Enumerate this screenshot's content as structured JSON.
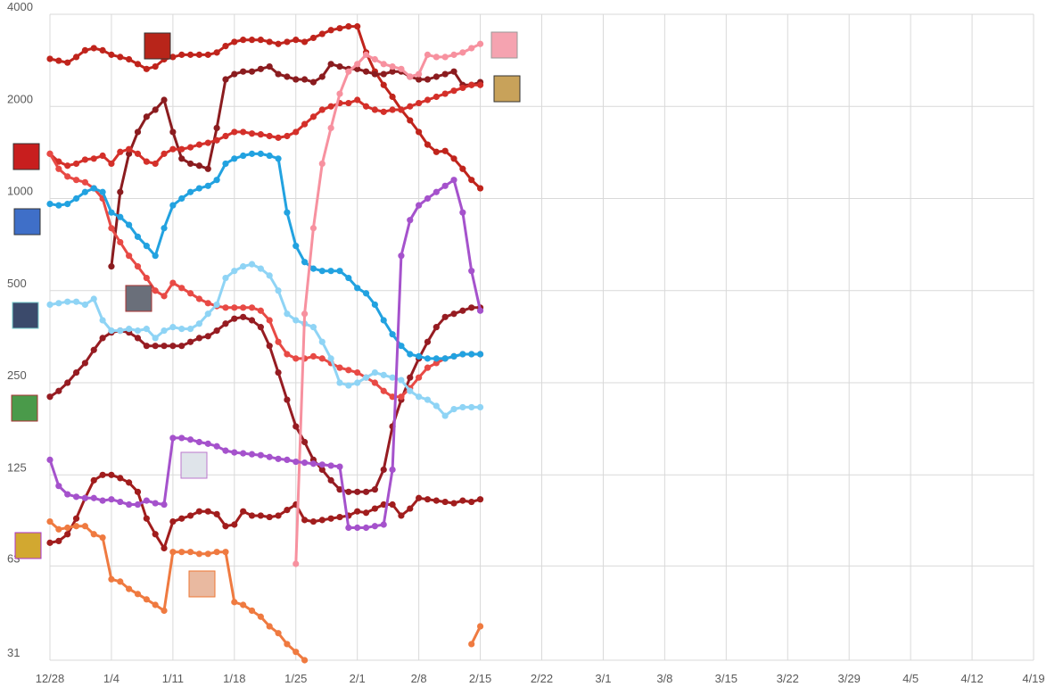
{
  "chart_data": {
    "type": "line",
    "yscale": "log",
    "grid": true,
    "x": [
      "12/28",
      "12/29",
      "12/30",
      "12/31",
      "1/1",
      "1/2",
      "1/3",
      "1/4",
      "1/5",
      "1/6",
      "1/7",
      "1/8",
      "1/9",
      "1/10",
      "1/11",
      "1/12",
      "1/13",
      "1/14",
      "1/15",
      "1/16",
      "1/17",
      "1/18",
      "1/19",
      "1/20",
      "1/21",
      "1/22",
      "1/23",
      "1/24",
      "1/25",
      "1/26",
      "1/27",
      "1/28",
      "1/29",
      "1/30",
      "1/31",
      "2/1",
      "2/2",
      "2/3",
      "2/4",
      "2/5",
      "2/6",
      "2/7",
      "2/8",
      "2/9",
      "2/10",
      "2/11",
      "2/12",
      "2/13",
      "2/14",
      "2/15"
    ],
    "xlim": [
      "12/28",
      "4/19"
    ],
    "xticks": [
      "12/28",
      "1/4",
      "1/11",
      "1/18",
      "1/25",
      "2/1",
      "2/8",
      "2/15",
      "2/22",
      "3/1",
      "3/8",
      "3/15",
      "3/22",
      "3/29",
      "4/5",
      "4/12",
      "4/19"
    ],
    "ylim": [
      31,
      4000
    ],
    "yticks": [
      31,
      63,
      125,
      250,
      500,
      1000,
      2000,
      4000
    ],
    "series": [
      {
        "color": "#c0241c",
        "values": [
          2860,
          2820,
          2780,
          2900,
          3050,
          3100,
          3050,
          2950,
          2900,
          2850,
          2750,
          2650,
          2700,
          2850,
          2900,
          2950,
          2950,
          2950,
          2950,
          3000,
          3150,
          3250,
          3300,
          3300,
          3300,
          3250,
          3200,
          3250,
          3300,
          3250,
          3350,
          3450,
          3550,
          3600,
          3650,
          3650,
          3000,
          2600,
          2350,
          2150,
          1950,
          1800,
          1650,
          1500,
          1420,
          1430,
          1350,
          1250,
          1150,
          1080
        ]
      },
      {
        "color": "#8b1c1f",
        "values": [
          null,
          null,
          null,
          null,
          null,
          null,
          null,
          600,
          1050,
          1400,
          1650,
          1850,
          1950,
          2100,
          1650,
          1350,
          1300,
          1280,
          1250,
          1700,
          2450,
          2550,
          2600,
          2600,
          2650,
          2700,
          2550,
          2500,
          2450,
          2450,
          2400,
          2500,
          2750,
          2700,
          2650,
          2650,
          2600,
          2550,
          2550,
          2600,
          2600,
          2500,
          2450,
          2450,
          2500,
          2550,
          2600,
          2350,
          2350,
          2400
        ]
      },
      {
        "color": "#961c22",
        "values": [
          225,
          235,
          250,
          270,
          290,
          320,
          350,
          365,
          370,
          365,
          350,
          330,
          330,
          330,
          330,
          330,
          340,
          350,
          355,
          370,
          390,
          405,
          410,
          400,
          380,
          330,
          270,
          220,
          180,
          160,
          140,
          130,
          120,
          112,
          110,
          110,
          110,
          112,
          130,
          180,
          220,
          260,
          300,
          340,
          380,
          410,
          420,
          430,
          440,
          440
        ]
      },
      {
        "color": "#a11d1d",
        "values": [
          75,
          76,
          80,
          90,
          105,
          120,
          125,
          125,
          122,
          118,
          110,
          90,
          80,
          72,
          88,
          90,
          92,
          95,
          95,
          93,
          85,
          86,
          95,
          92,
          92,
          91,
          92,
          96,
          100,
          89,
          88,
          89,
          90,
          91,
          92,
          95,
          94,
          97,
          100,
          100,
          92,
          97,
          105,
          104,
          103,
          102,
          101,
          103,
          102,
          104
        ]
      },
      {
        "color": "#d4302a",
        "values": [
          1400,
          1320,
          1280,
          1300,
          1340,
          1350,
          1380,
          1300,
          1420,
          1450,
          1400,
          1320,
          1300,
          1400,
          1450,
          1450,
          1470,
          1500,
          1520,
          1550,
          1600,
          1650,
          1650,
          1630,
          1620,
          1600,
          1580,
          1600,
          1650,
          1750,
          1850,
          1950,
          2000,
          2050,
          2050,
          2100,
          2000,
          1950,
          1920,
          1950,
          1950,
          2000,
          2050,
          2100,
          2150,
          2200,
          2250,
          2300,
          2350,
          2350
        ]
      },
      {
        "color": "#e84a45",
        "values": [
          1400,
          1250,
          1180,
          1150,
          1130,
          1080,
          1000,
          800,
          720,
          650,
          600,
          550,
          500,
          480,
          530,
          510,
          490,
          470,
          455,
          445,
          440,
          440,
          440,
          440,
          430,
          400,
          340,
          310,
          300,
          300,
          305,
          300,
          290,
          280,
          275,
          270,
          260,
          250,
          235,
          225,
          225,
          240,
          260,
          280,
          290,
          300,
          305,
          310,
          310,
          310
        ]
      },
      {
        "color": "#22a2e0",
        "values": [
          960,
          950,
          960,
          1000,
          1050,
          1080,
          1050,
          900,
          870,
          820,
          750,
          700,
          650,
          800,
          950,
          1000,
          1050,
          1080,
          1100,
          1150,
          1300,
          1350,
          1380,
          1400,
          1400,
          1380,
          1350,
          900,
          700,
          620,
          590,
          580,
          580,
          580,
          550,
          510,
          490,
          450,
          400,
          360,
          330,
          310,
          305,
          300,
          300,
          300,
          305,
          310,
          310,
          310
        ]
      },
      {
        "color": "#8fd4f5",
        "values": [
          450,
          455,
          460,
          460,
          450,
          470,
          400,
          370,
          370,
          375,
          370,
          375,
          350,
          370,
          380,
          375,
          375,
          390,
          420,
          450,
          550,
          580,
          600,
          610,
          590,
          560,
          500,
          420,
          400,
          390,
          380,
          340,
          300,
          250,
          245,
          250,
          260,
          270,
          265,
          260,
          255,
          235,
          225,
          220,
          210,
          195,
          205,
          208,
          208,
          208
        ]
      },
      {
        "color": "#f7919f",
        "values": [
          null,
          null,
          null,
          null,
          null,
          null,
          null,
          null,
          null,
          null,
          null,
          null,
          null,
          null,
          null,
          null,
          null,
          null,
          null,
          null,
          null,
          null,
          null,
          null,
          null,
          null,
          null,
          null,
          64,
          420,
          800,
          1300,
          1700,
          2200,
          2600,
          2750,
          2950,
          2850,
          2750,
          2700,
          2650,
          2500,
          2550,
          2950,
          2900,
          2900,
          2950,
          3000,
          3100,
          3200
        ]
      },
      {
        "color": "#a552cc",
        "values": [
          140,
          115,
          108,
          106,
          105,
          105,
          103,
          104,
          102,
          100,
          100,
          103,
          101,
          100,
          165,
          165,
          163,
          160,
          158,
          155,
          150,
          148,
          147,
          146,
          145,
          143,
          141,
          140,
          138,
          137,
          136,
          135,
          134,
          133,
          84,
          84,
          84,
          85,
          86,
          130,
          650,
          850,
          950,
          1000,
          1050,
          1100,
          1150,
          900,
          580,
          430
        ]
      },
      {
        "color": "#ef7a40",
        "values": [
          88,
          83,
          84,
          85,
          85,
          80,
          78,
          57,
          56,
          53,
          51,
          49,
          47,
          45,
          70,
          70,
          70,
          69,
          69,
          70,
          70,
          48,
          47,
          45,
          43,
          40,
          38,
          35,
          33,
          31,
          null,
          null,
          null,
          null,
          null,
          null,
          null,
          null,
          null,
          null,
          null,
          null,
          null,
          null,
          null,
          null,
          null,
          null,
          35,
          40
        ]
      }
    ]
  }
}
